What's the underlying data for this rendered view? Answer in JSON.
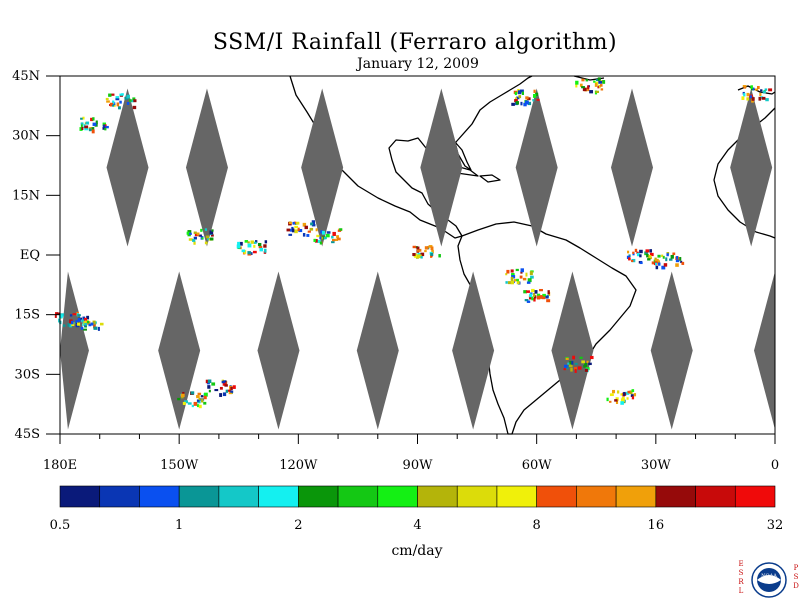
{
  "title": "SSM/I Rainfall (Ferraro algorithm)",
  "subtitle": "January 12, 2009",
  "map": {
    "lon_range": [
      -180,
      0
    ],
    "lat_range": [
      -45,
      45
    ],
    "lat_ticks": [
      {
        "value": 45,
        "label": "45N"
      },
      {
        "value": 30,
        "label": "30N"
      },
      {
        "value": 15,
        "label": "15N"
      },
      {
        "value": 0,
        "label": "EQ"
      },
      {
        "value": -15,
        "label": "15S"
      },
      {
        "value": -30,
        "label": "30S"
      },
      {
        "value": -45,
        "label": "45S"
      }
    ],
    "lon_ticks": [
      {
        "value": -180,
        "label": "180E"
      },
      {
        "value": -150,
        "label": "150W"
      },
      {
        "value": -120,
        "label": "120W"
      },
      {
        "value": -90,
        "label": "90W"
      },
      {
        "value": -60,
        "label": "60W"
      },
      {
        "value": -30,
        "label": "30W"
      },
      {
        "value": 0,
        "label": "0"
      }
    ],
    "missing_data_color": "#666666",
    "coastline_color": "#000000",
    "orbit_gaps": [
      {
        "lon": -163,
        "lat": 22
      },
      {
        "lon": -143,
        "lat": 22
      },
      {
        "lon": -114,
        "lat": 22
      },
      {
        "lon": -84,
        "lat": 22
      },
      {
        "lon": -60,
        "lat": 22
      },
      {
        "lon": -36,
        "lat": 22
      },
      {
        "lon": -6,
        "lat": 22
      },
      {
        "lon": -178,
        "lat": -24
      },
      {
        "lon": -150,
        "lat": -24
      },
      {
        "lon": -125,
        "lat": -24
      },
      {
        "lon": -100,
        "lat": -24
      },
      {
        "lon": -76,
        "lat": -24
      },
      {
        "lon": -51,
        "lat": -24
      },
      {
        "lon": -26,
        "lat": -24
      },
      {
        "lon": 0,
        "lat": -24
      }
    ],
    "rain_areas": [
      {
        "lon": -165,
        "lat": 39
      },
      {
        "lon": -172,
        "lat": 33
      },
      {
        "lon": -145,
        "lat": 5
      },
      {
        "lon": -132,
        "lat": 2
      },
      {
        "lon": -120,
        "lat": 7
      },
      {
        "lon": -113,
        "lat": 5
      },
      {
        "lon": -140,
        "lat": -33
      },
      {
        "lon": -147,
        "lat": -36
      },
      {
        "lon": -178,
        "lat": -16
      },
      {
        "lon": -173,
        "lat": -17
      },
      {
        "lon": -63,
        "lat": 40
      },
      {
        "lon": -47,
        "lat": 43
      },
      {
        "lon": -34,
        "lat": 0
      },
      {
        "lon": -27,
        "lat": -1
      },
      {
        "lon": -50,
        "lat": -27
      },
      {
        "lon": -39,
        "lat": -35
      },
      {
        "lon": -65,
        "lat": -5
      },
      {
        "lon": -60,
        "lat": -10
      },
      {
        "lon": -5,
        "lat": 41
      },
      {
        "lon": -88,
        "lat": 1
      }
    ]
  },
  "colorbar": {
    "colors": [
      "#0a1a7a",
      "#0a36b4",
      "#0a50f0",
      "#0a9696",
      "#14c8c8",
      "#14f0f0",
      "#0a960a",
      "#14c814",
      "#14f014",
      "#b4b40a",
      "#dcdc0a",
      "#f0f00a",
      "#f0500a",
      "#f0780a",
      "#f0a00a",
      "#960a0a",
      "#c80a0a",
      "#f00a0a"
    ],
    "tick_labels": [
      "0.5",
      "1",
      "2",
      "4",
      "8",
      "16",
      "32"
    ],
    "unit_label": "cm/day"
  },
  "logo": {
    "left_text": "ESRL",
    "right_text": "PSD",
    "center_text": "NOAA",
    "color": "#0a3c8c"
  }
}
